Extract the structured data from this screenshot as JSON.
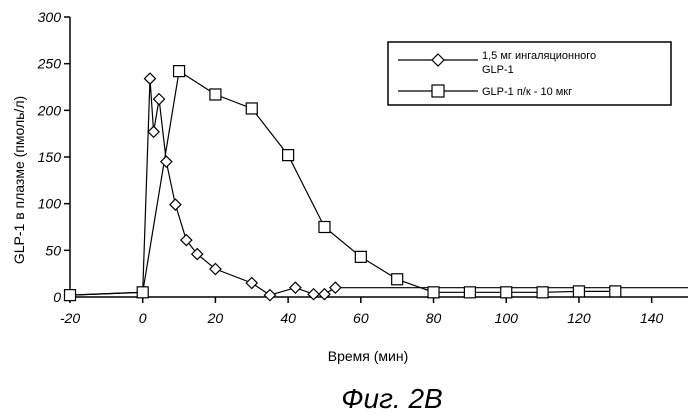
{
  "chart_data": {
    "type": "line",
    "xlabel": "Время (мин)",
    "ylabel": "GLP-1 в плазме (пмоль/л)",
    "xlim": [
      -20,
      150
    ],
    "ylim": [
      0,
      300
    ],
    "xticks": [
      -20,
      0,
      20,
      40,
      60,
      80,
      100,
      120,
      140
    ],
    "yticks": [
      0,
      50,
      100,
      150,
      200,
      250,
      300
    ],
    "grid": false,
    "legend_position": "top-right",
    "series": [
      {
        "name_lines": [
          "1,5 мг ингаляционного",
          "GLP-1"
        ],
        "marker": "diamond",
        "color": "#000000",
        "x": [
          -20,
          0,
          2,
          3,
          4.5,
          6.5,
          9,
          12,
          15,
          20,
          30,
          35,
          42,
          47,
          50,
          53
        ],
        "y": [
          2,
          5,
          234,
          177,
          212,
          145,
          99,
          61,
          46,
          30,
          15,
          2,
          10,
          3,
          3,
          10
        ]
      },
      {
        "name_lines": [
          "GLP-1 п/к - 10 мкг"
        ],
        "marker": "square",
        "color": "#000000",
        "x": [
          -20,
          0,
          10,
          20,
          30,
          40,
          50,
          60,
          70,
          80,
          90,
          100,
          110,
          120,
          130
        ],
        "y": [
          2,
          5,
          242,
          217,
          202,
          152,
          75,
          43,
          19,
          5,
          5,
          5,
          5,
          6,
          6
        ]
      }
    ],
    "baseline_segment": {
      "x": [
        53,
        150
      ],
      "y": [
        10,
        10
      ]
    },
    "caption": "Фиг. 2В"
  }
}
